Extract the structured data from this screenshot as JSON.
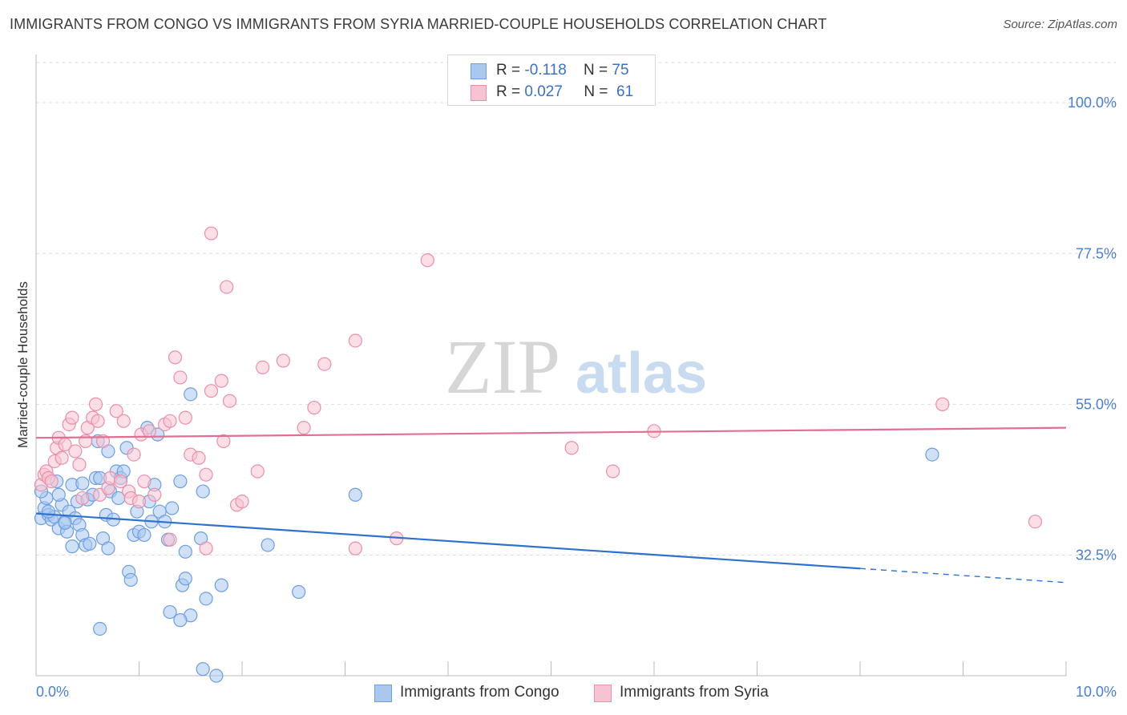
{
  "title": "IMMIGRANTS FROM CONGO VS IMMIGRANTS FROM SYRIA MARRIED-COUPLE HOUSEHOLDS CORRELATION CHART",
  "source": "Source: ZipAtlas.com",
  "watermark": {
    "zip": "ZIP",
    "atlas": "atlas"
  },
  "legend": {
    "congo": {
      "r_label": "R =",
      "r_value": "-0.118",
      "n_label": "N =",
      "n_value": "75"
    },
    "syria": {
      "r_label": "R =",
      "r_value": "0.027",
      "n_label": "N =",
      "n_value": "61"
    }
  },
  "colors": {
    "congo_fill": "#a9c8f0",
    "congo_stroke": "#6d9ee0",
    "congo_line": "#2f72cc",
    "syria_fill": "#f7c2d2",
    "syria_stroke": "#e98fac",
    "syria_line": "#e46e93",
    "tick_text": "#4a7fd0",
    "grid": "#dddddd"
  },
  "chart_data": {
    "type": "scatter",
    "title": "IMMIGRANTS FROM CONGO VS IMMIGRANTS FROM SYRIA MARRIED-COUPLE HOUSEHOLDS CORRELATION CHART",
    "xlabel": "",
    "ylabel": "Married-couple Households",
    "xlim": [
      0,
      10
    ],
    "ylim": [
      14.5,
      106
    ],
    "x_tick_labels": [
      "0.0%",
      "10.0%"
    ],
    "y_ticks": [
      32.5,
      55.0,
      77.5,
      100.0
    ],
    "y_tick_labels": [
      "32.5%",
      "55.0%",
      "77.5%",
      "100.0%"
    ],
    "legend_position": "top-center",
    "series": [
      {
        "name": "Immigrants from Congo",
        "r": -0.118,
        "n": 75,
        "trend": {
          "x0": 0,
          "y0": 38.7,
          "x1": 8.0,
          "y1": 30.5,
          "dash_to_x": 10,
          "dash_to_y": 28.4
        },
        "points": [
          [
            0.05,
            38.0
          ],
          [
            0.08,
            39.5
          ],
          [
            0.1,
            41.0
          ],
          [
            0.12,
            38.5
          ],
          [
            0.15,
            37.8
          ],
          [
            0.18,
            38.2
          ],
          [
            0.2,
            43.5
          ],
          [
            0.22,
            36.5
          ],
          [
            0.25,
            40.0
          ],
          [
            0.28,
            37.5
          ],
          [
            0.3,
            36.0
          ],
          [
            0.32,
            39.0
          ],
          [
            0.35,
            43.0
          ],
          [
            0.38,
            38.0
          ],
          [
            0.4,
            40.5
          ],
          [
            0.42,
            37.0
          ],
          [
            0.45,
            35.5
          ],
          [
            0.48,
            34.0
          ],
          [
            0.5,
            40.8
          ],
          [
            0.52,
            34.2
          ],
          [
            0.55,
            41.5
          ],
          [
            0.58,
            44.0
          ],
          [
            0.6,
            49.5
          ],
          [
            0.62,
            44.0
          ],
          [
            0.65,
            35.0
          ],
          [
            0.68,
            38.5
          ],
          [
            0.7,
            48.0
          ],
          [
            0.72,
            42.0
          ],
          [
            0.75,
            37.8
          ],
          [
            0.78,
            45.0
          ],
          [
            0.8,
            41.0
          ],
          [
            0.82,
            44.0
          ],
          [
            0.85,
            45.0
          ],
          [
            0.88,
            48.5
          ],
          [
            0.9,
            30.0
          ],
          [
            0.92,
            28.8
          ],
          [
            0.95,
            35.5
          ],
          [
            0.98,
            39.0
          ],
          [
            1.0,
            36.0
          ],
          [
            1.05,
            35.5
          ],
          [
            1.08,
            51.5
          ],
          [
            1.1,
            40.5
          ],
          [
            1.12,
            37.5
          ],
          [
            1.15,
            43.0
          ],
          [
            1.18,
            50.5
          ],
          [
            1.2,
            39.0
          ],
          [
            1.25,
            37.5
          ],
          [
            1.28,
            34.8
          ],
          [
            1.3,
            24.0
          ],
          [
            1.32,
            39.5
          ],
          [
            1.4,
            43.5
          ],
          [
            1.42,
            28.0
          ],
          [
            1.45,
            29.0
          ],
          [
            1.5,
            56.5
          ],
          [
            1.6,
            35.0
          ],
          [
            1.62,
            42.0
          ],
          [
            1.65,
            26.0
          ],
          [
            1.8,
            28.0
          ],
          [
            2.25,
            34.0
          ],
          [
            2.55,
            27.0
          ],
          [
            3.1,
            41.5
          ],
          [
            8.7,
            47.5
          ],
          [
            0.62,
            21.5
          ],
          [
            1.5,
            23.5
          ],
          [
            1.45,
            33.0
          ],
          [
            1.4,
            22.8
          ],
          [
            0.35,
            33.8
          ],
          [
            0.28,
            37.3
          ],
          [
            0.7,
            33.5
          ],
          [
            0.22,
            41.5
          ],
          [
            1.62,
            15.5
          ],
          [
            1.75,
            14.5
          ],
          [
            0.05,
            42.0
          ],
          [
            0.12,
            39.0
          ],
          [
            0.45,
            43.2
          ]
        ]
      },
      {
        "name": "Immigrants from Syria",
        "r": 0.027,
        "n": 61,
        "trend": {
          "x0": 0,
          "y0": 50.0,
          "x1": 10,
          "y1": 51.5
        },
        "points": [
          [
            0.05,
            43.0
          ],
          [
            0.08,
            44.5
          ],
          [
            0.1,
            45.0
          ],
          [
            0.12,
            44.0
          ],
          [
            0.15,
            43.5
          ],
          [
            0.18,
            46.5
          ],
          [
            0.2,
            48.5
          ],
          [
            0.22,
            50.0
          ],
          [
            0.25,
            47.0
          ],
          [
            0.28,
            49.0
          ],
          [
            0.32,
            52.0
          ],
          [
            0.35,
            53.0
          ],
          [
            0.38,
            48.0
          ],
          [
            0.42,
            46.0
          ],
          [
            0.45,
            41.0
          ],
          [
            0.48,
            49.5
          ],
          [
            0.5,
            51.5
          ],
          [
            0.55,
            53.0
          ],
          [
            0.58,
            55.0
          ],
          [
            0.6,
            52.5
          ],
          [
            0.62,
            41.5
          ],
          [
            0.65,
            49.5
          ],
          [
            0.7,
            42.5
          ],
          [
            0.72,
            44.0
          ],
          [
            0.78,
            54.0
          ],
          [
            0.82,
            43.5
          ],
          [
            0.85,
            52.5
          ],
          [
            0.9,
            42.0
          ],
          [
            0.92,
            41.0
          ],
          [
            0.95,
            47.5
          ],
          [
            1.0,
            40.5
          ],
          [
            1.02,
            50.5
          ],
          [
            1.05,
            43.5
          ],
          [
            1.1,
            51.0
          ],
          [
            1.15,
            41.5
          ],
          [
            1.25,
            52.0
          ],
          [
            1.3,
            52.5
          ],
          [
            1.35,
            62.0
          ],
          [
            1.4,
            59.0
          ],
          [
            1.45,
            53.0
          ],
          [
            1.5,
            47.5
          ],
          [
            1.58,
            47.0
          ],
          [
            1.65,
            44.5
          ],
          [
            1.7,
            57.0
          ],
          [
            1.8,
            58.5
          ],
          [
            1.82,
            49.5
          ],
          [
            1.88,
            55.5
          ],
          [
            1.95,
            40.0
          ],
          [
            2.0,
            40.5
          ],
          [
            2.15,
            45.0
          ],
          [
            2.2,
            60.5
          ],
          [
            2.4,
            61.5
          ],
          [
            2.6,
            51.5
          ],
          [
            2.7,
            54.5
          ],
          [
            2.8,
            61.0
          ],
          [
            3.1,
            64.5
          ],
          [
            3.5,
            35.0
          ],
          [
            3.8,
            76.5
          ],
          [
            5.2,
            48.5
          ],
          [
            5.6,
            45.0
          ],
          [
            6.0,
            51.0
          ]
        ],
        "extra_points": [
          [
            1.7,
            80.5
          ],
          [
            1.85,
            72.5
          ],
          [
            8.8,
            55.0
          ],
          [
            9.7,
            37.5
          ],
          [
            1.3,
            34.8
          ],
          [
            1.65,
            33.5
          ],
          [
            3.1,
            33.5
          ]
        ]
      }
    ]
  },
  "bottom_legend": {
    "congo_label": "Immigrants from Congo",
    "syria_label": "Immigrants from Syria"
  }
}
